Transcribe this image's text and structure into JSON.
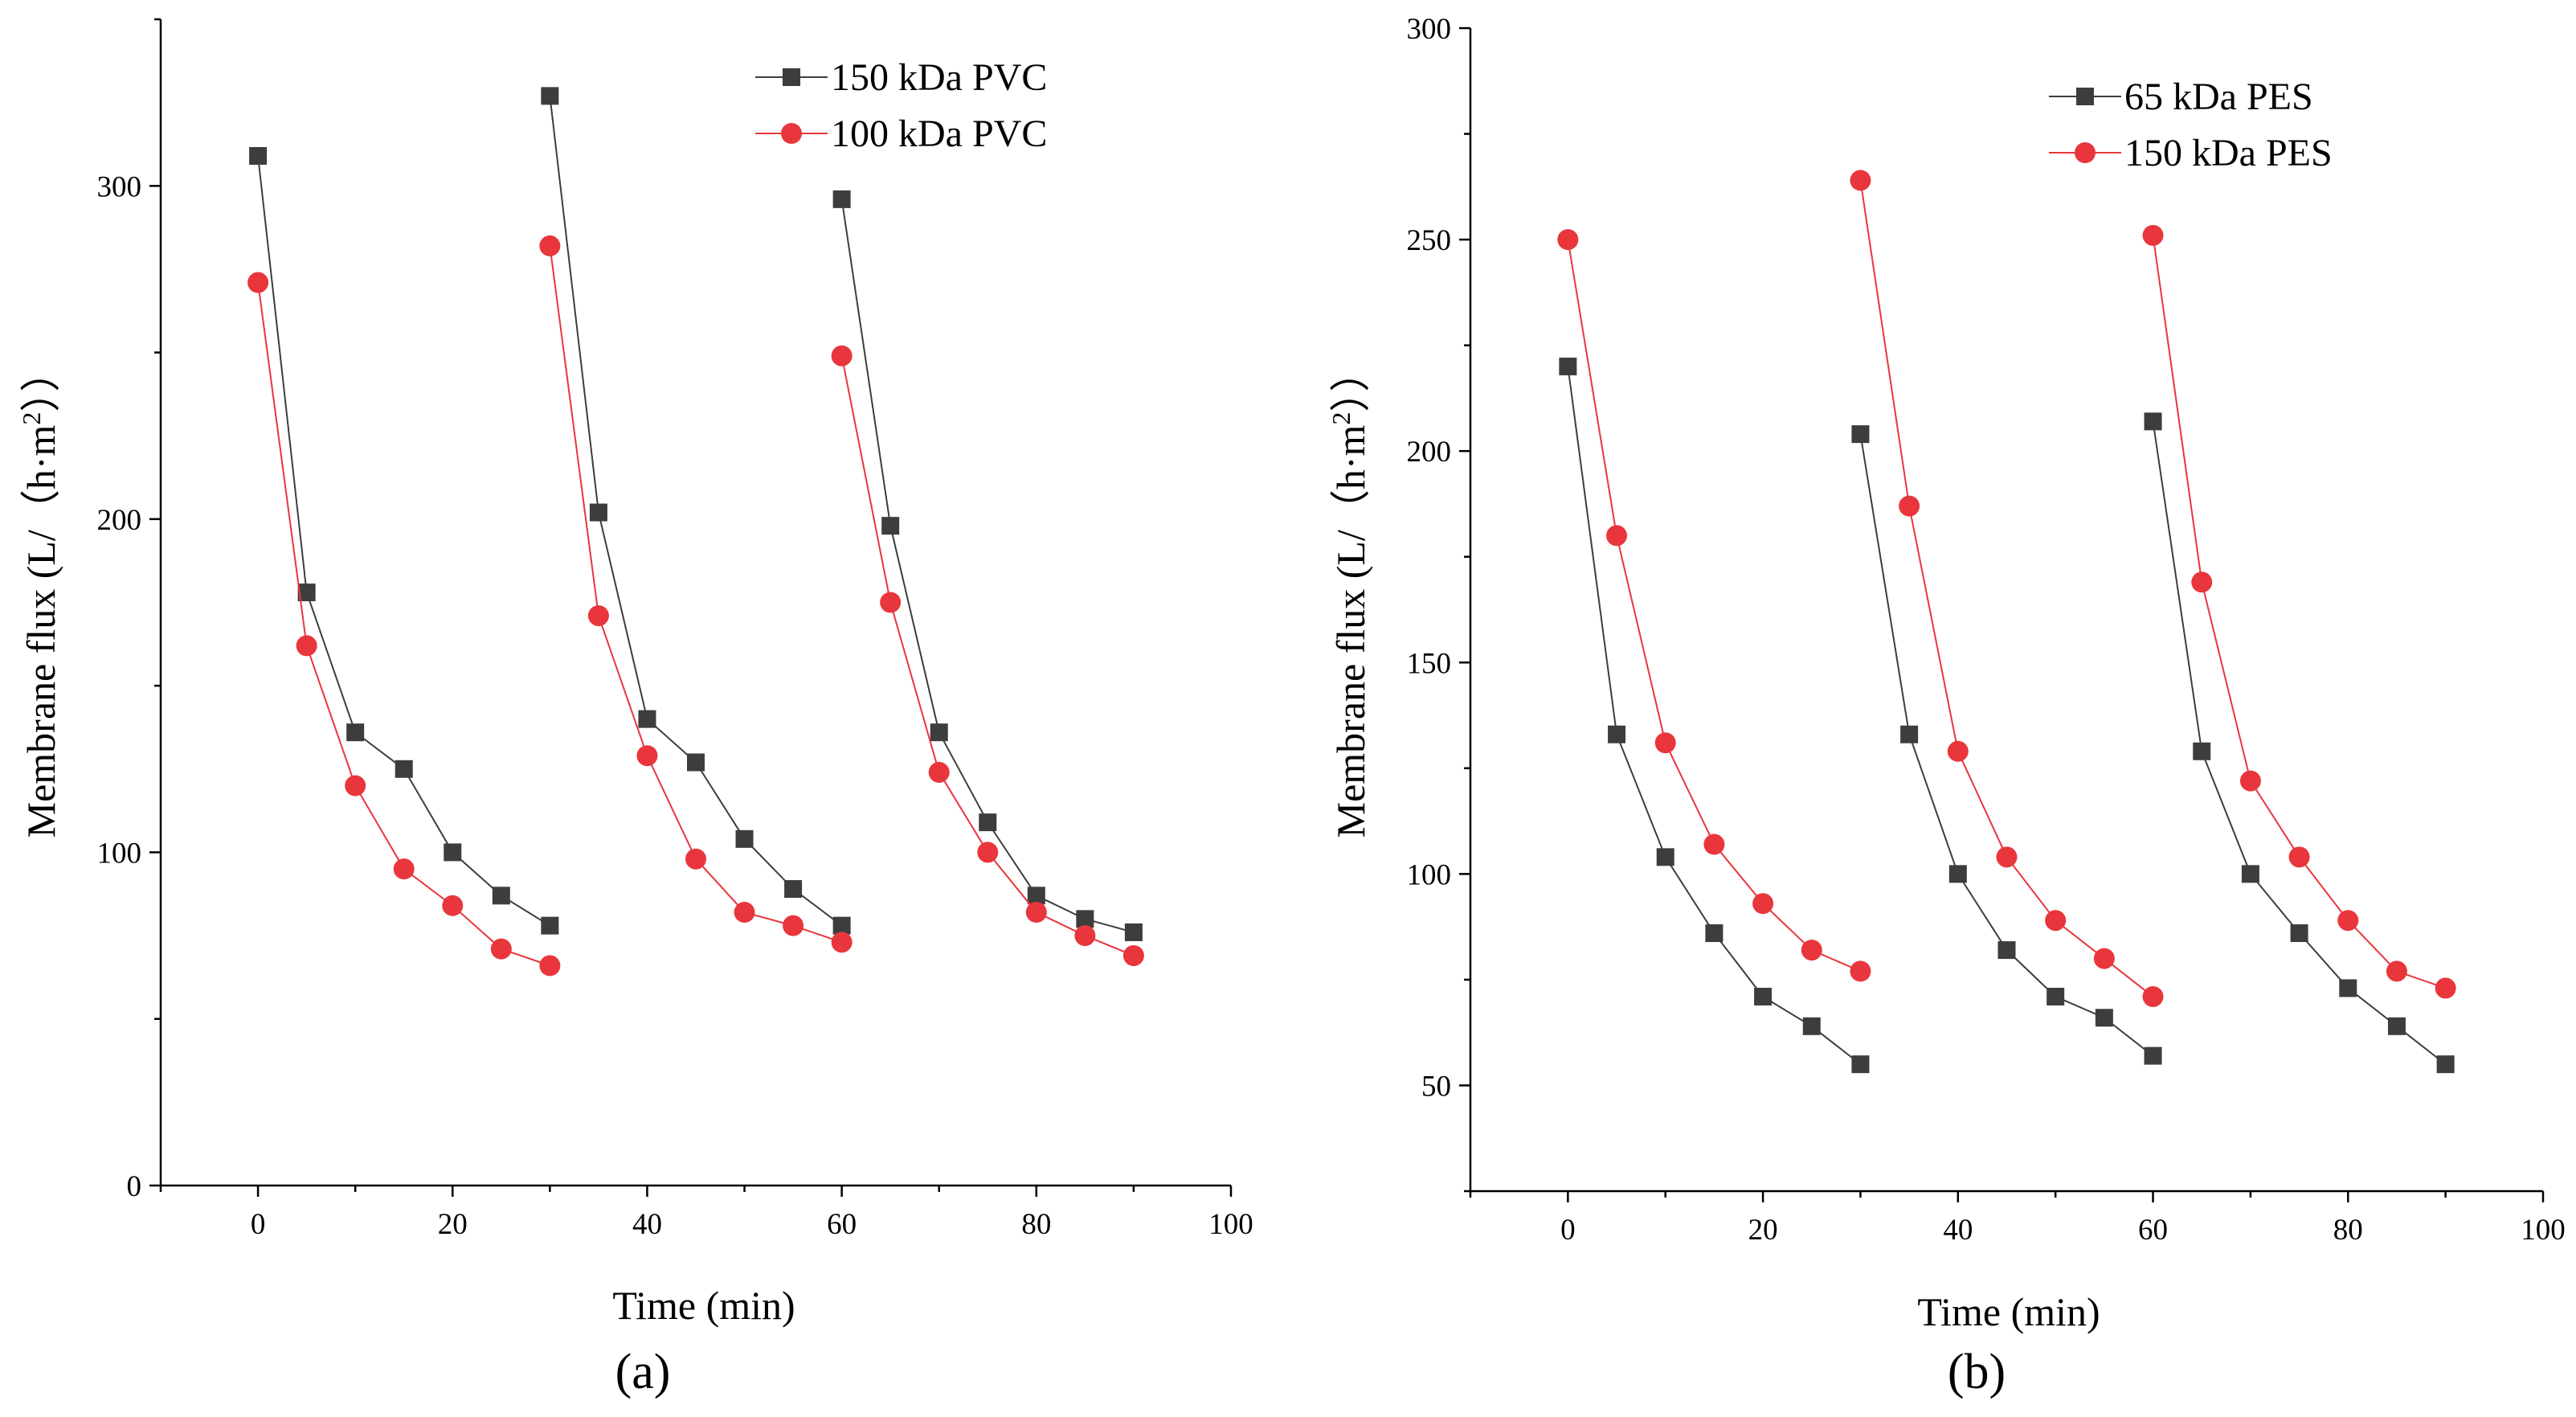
{
  "chart_data": [
    {
      "type": "line",
      "panel_label": "(a)",
      "xlabel": "Time (min)",
      "ylabel": {
        "main": "Membrane flux (L/（h·m",
        "sup": "2",
        "tail": "））"
      },
      "xlim": [
        -10,
        100
      ],
      "ylim": [
        0,
        350
      ],
      "xticks": [
        0,
        20,
        40,
        60,
        80,
        100
      ],
      "yticks": [
        0,
        100,
        200,
        300
      ],
      "legend_position": "top-right",
      "series": [
        {
          "name": "150 kDa PVC",
          "marker": "square",
          "color": "#3d3d3d",
          "segments": [
            {
              "x": [
                0,
                5,
                10,
                15,
                20,
                25,
                30
              ],
              "y": [
                309,
                178,
                136,
                125,
                100,
                87,
                78
              ]
            },
            {
              "x": [
                30,
                35,
                40,
                45,
                50,
                55,
                60
              ],
              "y": [
                327,
                202,
                140,
                127,
                104,
                89,
                78
              ]
            },
            {
              "x": [
                60,
                65,
                70,
                75,
                80,
                85,
                90
              ],
              "y": [
                296,
                198,
                136,
                109,
                87,
                80,
                76
              ]
            }
          ]
        },
        {
          "name": "100 kDa PVC",
          "marker": "circle",
          "color": "#e8363c",
          "segments": [
            {
              "x": [
                0,
                5,
                10,
                15,
                20,
                25,
                30
              ],
              "y": [
                271,
                162,
                120,
                95,
                84,
                71,
                66
              ]
            },
            {
              "x": [
                30,
                35,
                40,
                45,
                50,
                55,
                60
              ],
              "y": [
                282,
                171,
                129,
                98,
                82,
                78,
                73
              ]
            },
            {
              "x": [
                60,
                65,
                70,
                75,
                80,
                85,
                90
              ],
              "y": [
                249,
                175,
                124,
                100,
                82,
                75,
                69
              ]
            }
          ]
        }
      ]
    },
    {
      "type": "line",
      "panel_label": "(b)",
      "xlabel": "Time (min)",
      "ylabel": {
        "main": "Membrane flux (L/（h·m",
        "sup": "2",
        "tail": "））"
      },
      "xlim": [
        -10,
        100
      ],
      "ylim": [
        25,
        300
      ],
      "xticks": [
        0,
        20,
        40,
        60,
        80,
        100
      ],
      "yticks": [
        50,
        100,
        150,
        200,
        250,
        300
      ],
      "legend_position": "top-right",
      "series": [
        {
          "name": "65 kDa PES",
          "marker": "square",
          "color": "#3d3d3d",
          "segments": [
            {
              "x": [
                0,
                5,
                10,
                15,
                20,
                25,
                30
              ],
              "y": [
                220,
                133,
                104,
                86,
                71,
                64,
                55
              ]
            },
            {
              "x": [
                30,
                35,
                40,
                45,
                50,
                55,
                60
              ],
              "y": [
                204,
                133,
                100,
                82,
                71,
                66,
                57
              ]
            },
            {
              "x": [
                60,
                65,
                70,
                75,
                80,
                85,
                90
              ],
              "y": [
                207,
                129,
                100,
                86,
                73,
                64,
                55
              ]
            }
          ]
        },
        {
          "name": "150 kDa PES",
          "marker": "circle",
          "color": "#e8363c",
          "segments": [
            {
              "x": [
                0,
                5,
                10,
                15,
                20,
                25,
                30
              ],
              "y": [
                250,
                180,
                131,
                107,
                93,
                82,
                77
              ]
            },
            {
              "x": [
                30,
                35,
                40,
                45,
                50,
                55,
                60
              ],
              "y": [
                264,
                187,
                129,
                104,
                89,
                80,
                71
              ]
            },
            {
              "x": [
                60,
                65,
                70,
                75,
                80,
                85,
                90
              ],
              "y": [
                251,
                169,
                122,
                104,
                89,
                77,
                73
              ]
            }
          ]
        }
      ]
    }
  ]
}
